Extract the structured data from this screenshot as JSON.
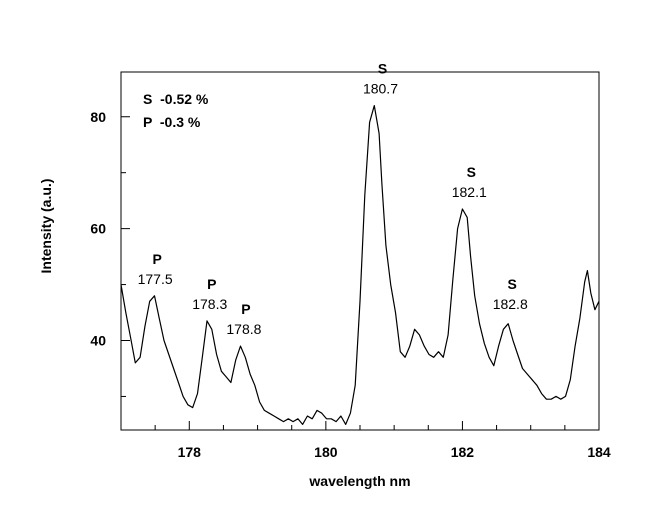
{
  "chart_data": {
    "type": "line",
    "xlabel": "wavelength nm",
    "ylabel": "Intensity (a.u.)",
    "xlim": [
      177.0,
      184.0
    ],
    "ylim": [
      24.0,
      88.0
    ],
    "x_ticks": [
      178,
      180,
      182,
      184
    ],
    "y_ticks": [
      40,
      60,
      80
    ],
    "x_tick_labels": [
      "178",
      "180",
      "182",
      "184"
    ],
    "y_tick_labels": [
      "40",
      "60",
      "80"
    ],
    "grid": false,
    "notes": [
      "S  -0.52 %",
      "P  -0.3 %"
    ],
    "annotations": [
      {
        "element": "P",
        "wavelength": "177.5",
        "x": 177.5,
        "y": 48
      },
      {
        "element": "P",
        "wavelength": "178.3",
        "x": 178.3,
        "y": 43.5
      },
      {
        "element": "P",
        "wavelength": "178.8",
        "x": 178.8,
        "y": 39
      },
      {
        "element": "S",
        "wavelength": "180.7",
        "x": 180.8,
        "y": 82
      },
      {
        "element": "S",
        "wavelength": "182.1",
        "x": 182.1,
        "y": 63.5
      },
      {
        "element": "S",
        "wavelength": "182.8",
        "x": 182.7,
        "y": 43.5
      }
    ],
    "series": [
      {
        "x": [
          177.0,
          177.07,
          177.14,
          177.21,
          177.28,
          177.35,
          177.42,
          177.49,
          177.56,
          177.63,
          177.7,
          177.77,
          177.84,
          177.91,
          177.98,
          178.05,
          178.12,
          178.19,
          178.26,
          178.33,
          178.4,
          178.47,
          178.54,
          178.61,
          178.68,
          178.75,
          178.82,
          178.89,
          178.96,
          179.03,
          179.1,
          179.17,
          179.24,
          179.31,
          179.38,
          179.45,
          179.52,
          179.59,
          179.66,
          179.73,
          179.8,
          179.87,
          179.94,
          180.01,
          180.08,
          180.15,
          180.22,
          180.29,
          180.36,
          180.43,
          180.5,
          180.57,
          180.64,
          180.71,
          180.78,
          180.82,
          180.88,
          180.95,
          181.02,
          181.09,
          181.16,
          181.23,
          181.3,
          181.37,
          181.44,
          181.51,
          181.58,
          181.65,
          181.72,
          181.79,
          181.86,
          181.93,
          182.0,
          182.07,
          182.12,
          182.18,
          182.25,
          182.32,
          182.39,
          182.46,
          182.53,
          182.6,
          182.67,
          182.74,
          182.81,
          182.88,
          182.95,
          183.02,
          183.09,
          183.16,
          183.23,
          183.3,
          183.37,
          183.44,
          183.51,
          183.58,
          183.65,
          183.72,
          183.79,
          183.83,
          183.88,
          183.94,
          184.0
        ],
        "y": [
          50,
          45,
          40.5,
          36,
          37,
          42.5,
          47,
          48,
          44,
          40,
          37.5,
          35,
          32.5,
          30,
          28.5,
          28,
          30.5,
          37,
          43.5,
          42,
          37.5,
          34.5,
          33.5,
          32.5,
          36.5,
          39,
          37,
          34,
          32,
          29,
          27.5,
          27,
          26.5,
          26,
          25.5,
          26,
          25.5,
          26,
          25,
          26.5,
          26,
          27.5,
          27,
          26,
          26,
          25.5,
          26.5,
          25,
          27,
          32,
          47,
          66,
          79,
          82,
          77,
          68,
          57,
          50,
          45,
          38,
          37,
          39,
          42,
          41,
          39,
          37.5,
          37,
          38,
          37,
          41,
          51,
          60,
          63.5,
          62,
          55,
          48,
          43,
          39.5,
          37,
          35.5,
          39,
          42,
          43,
          40,
          37.5,
          35,
          34,
          33,
          32,
          30.5,
          29.5,
          29.5,
          30,
          29.5,
          30,
          33,
          39,
          44,
          50.5,
          52.5,
          48.5,
          45.5,
          47
        ]
      }
    ]
  }
}
